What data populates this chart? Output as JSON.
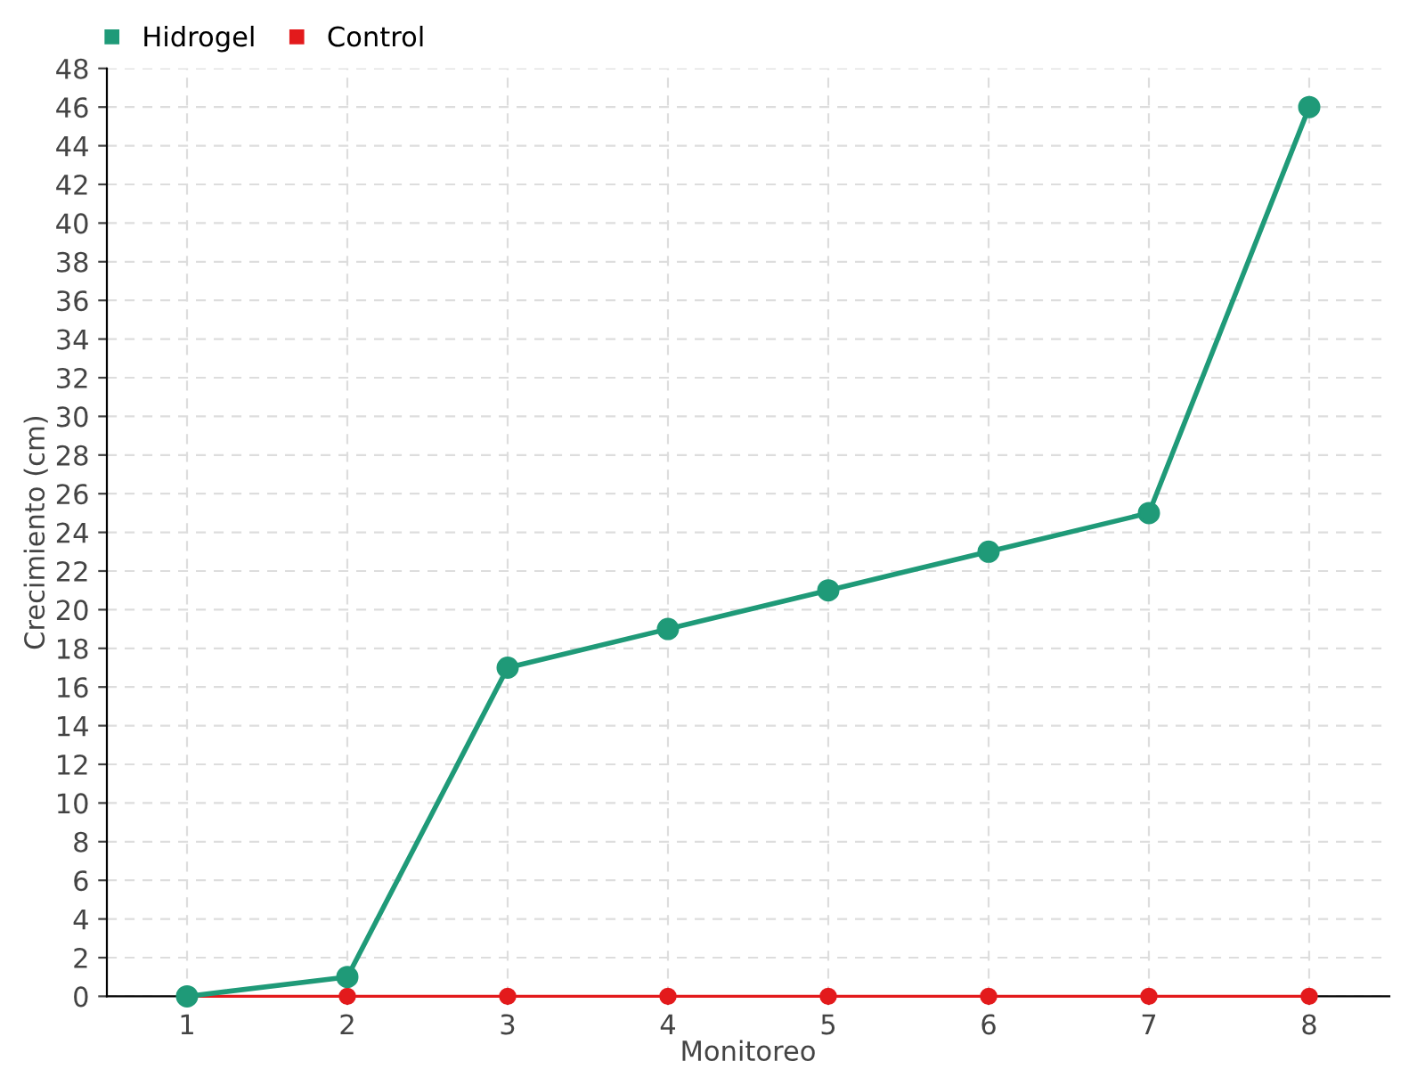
{
  "chart_data": {
    "type": "line",
    "xlabel": "Monitoreo",
    "ylabel": "Crecimiento (cm)",
    "categories": [
      "1",
      "2",
      "3",
      "4",
      "5",
      "6",
      "7",
      "8"
    ],
    "series": [
      {
        "name": "Hidrogel",
        "color": "#1f9a78",
        "values": [
          0,
          1,
          17,
          19,
          21,
          23,
          25,
          46
        ]
      },
      {
        "name": "Control",
        "color": "#e31a1c",
        "values": [
          0,
          0,
          0,
          0,
          0,
          0,
          0,
          0
        ]
      }
    ],
    "ylim": [
      0,
      48
    ],
    "yticks": [
      0,
      2,
      4,
      6,
      8,
      10,
      12,
      14,
      16,
      18,
      20,
      22,
      24,
      26,
      28,
      30,
      32,
      34,
      36,
      38,
      40,
      42,
      44,
      46,
      48
    ],
    "grid": true,
    "legend": "top left",
    "marker": "circle",
    "line_style": "solid"
  }
}
